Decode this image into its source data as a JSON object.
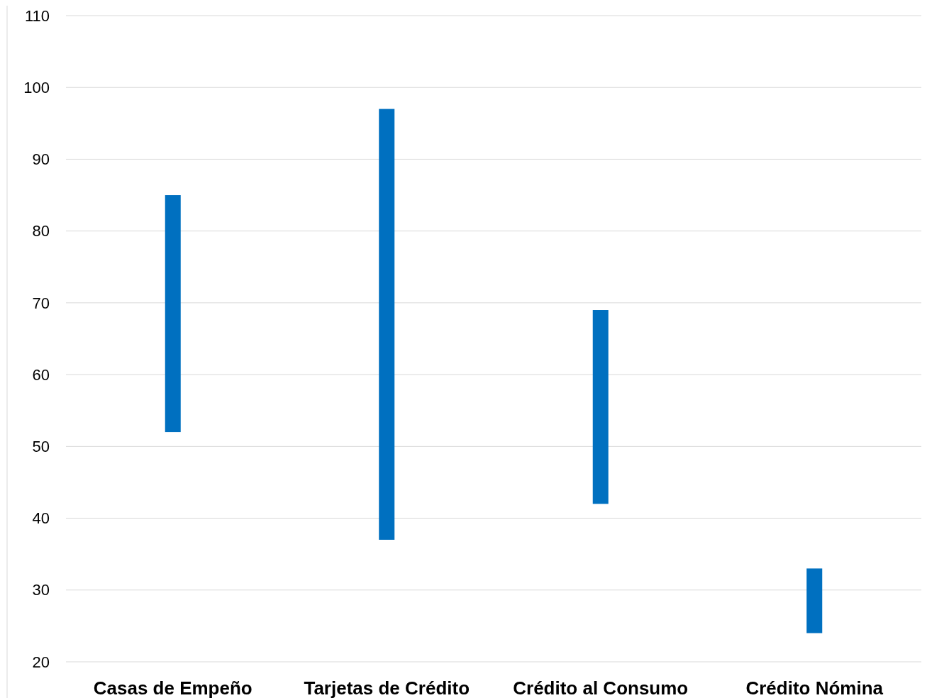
{
  "chart_data": {
    "type": "bar",
    "categories": [
      "Casas de Empeño",
      "Tarjetas de Crédito",
      "Crédito al Consumo",
      "Crédito Nómina"
    ],
    "base": [
      52,
      37,
      42,
      24
    ],
    "values": [
      33,
      60,
      27,
      9
    ],
    "color": "#0070c0",
    "ylim": [
      20,
      110
    ],
    "yticks": [
      20,
      30,
      40,
      50,
      60,
      70,
      80,
      90,
      100,
      110
    ],
    "grid": "y"
  }
}
